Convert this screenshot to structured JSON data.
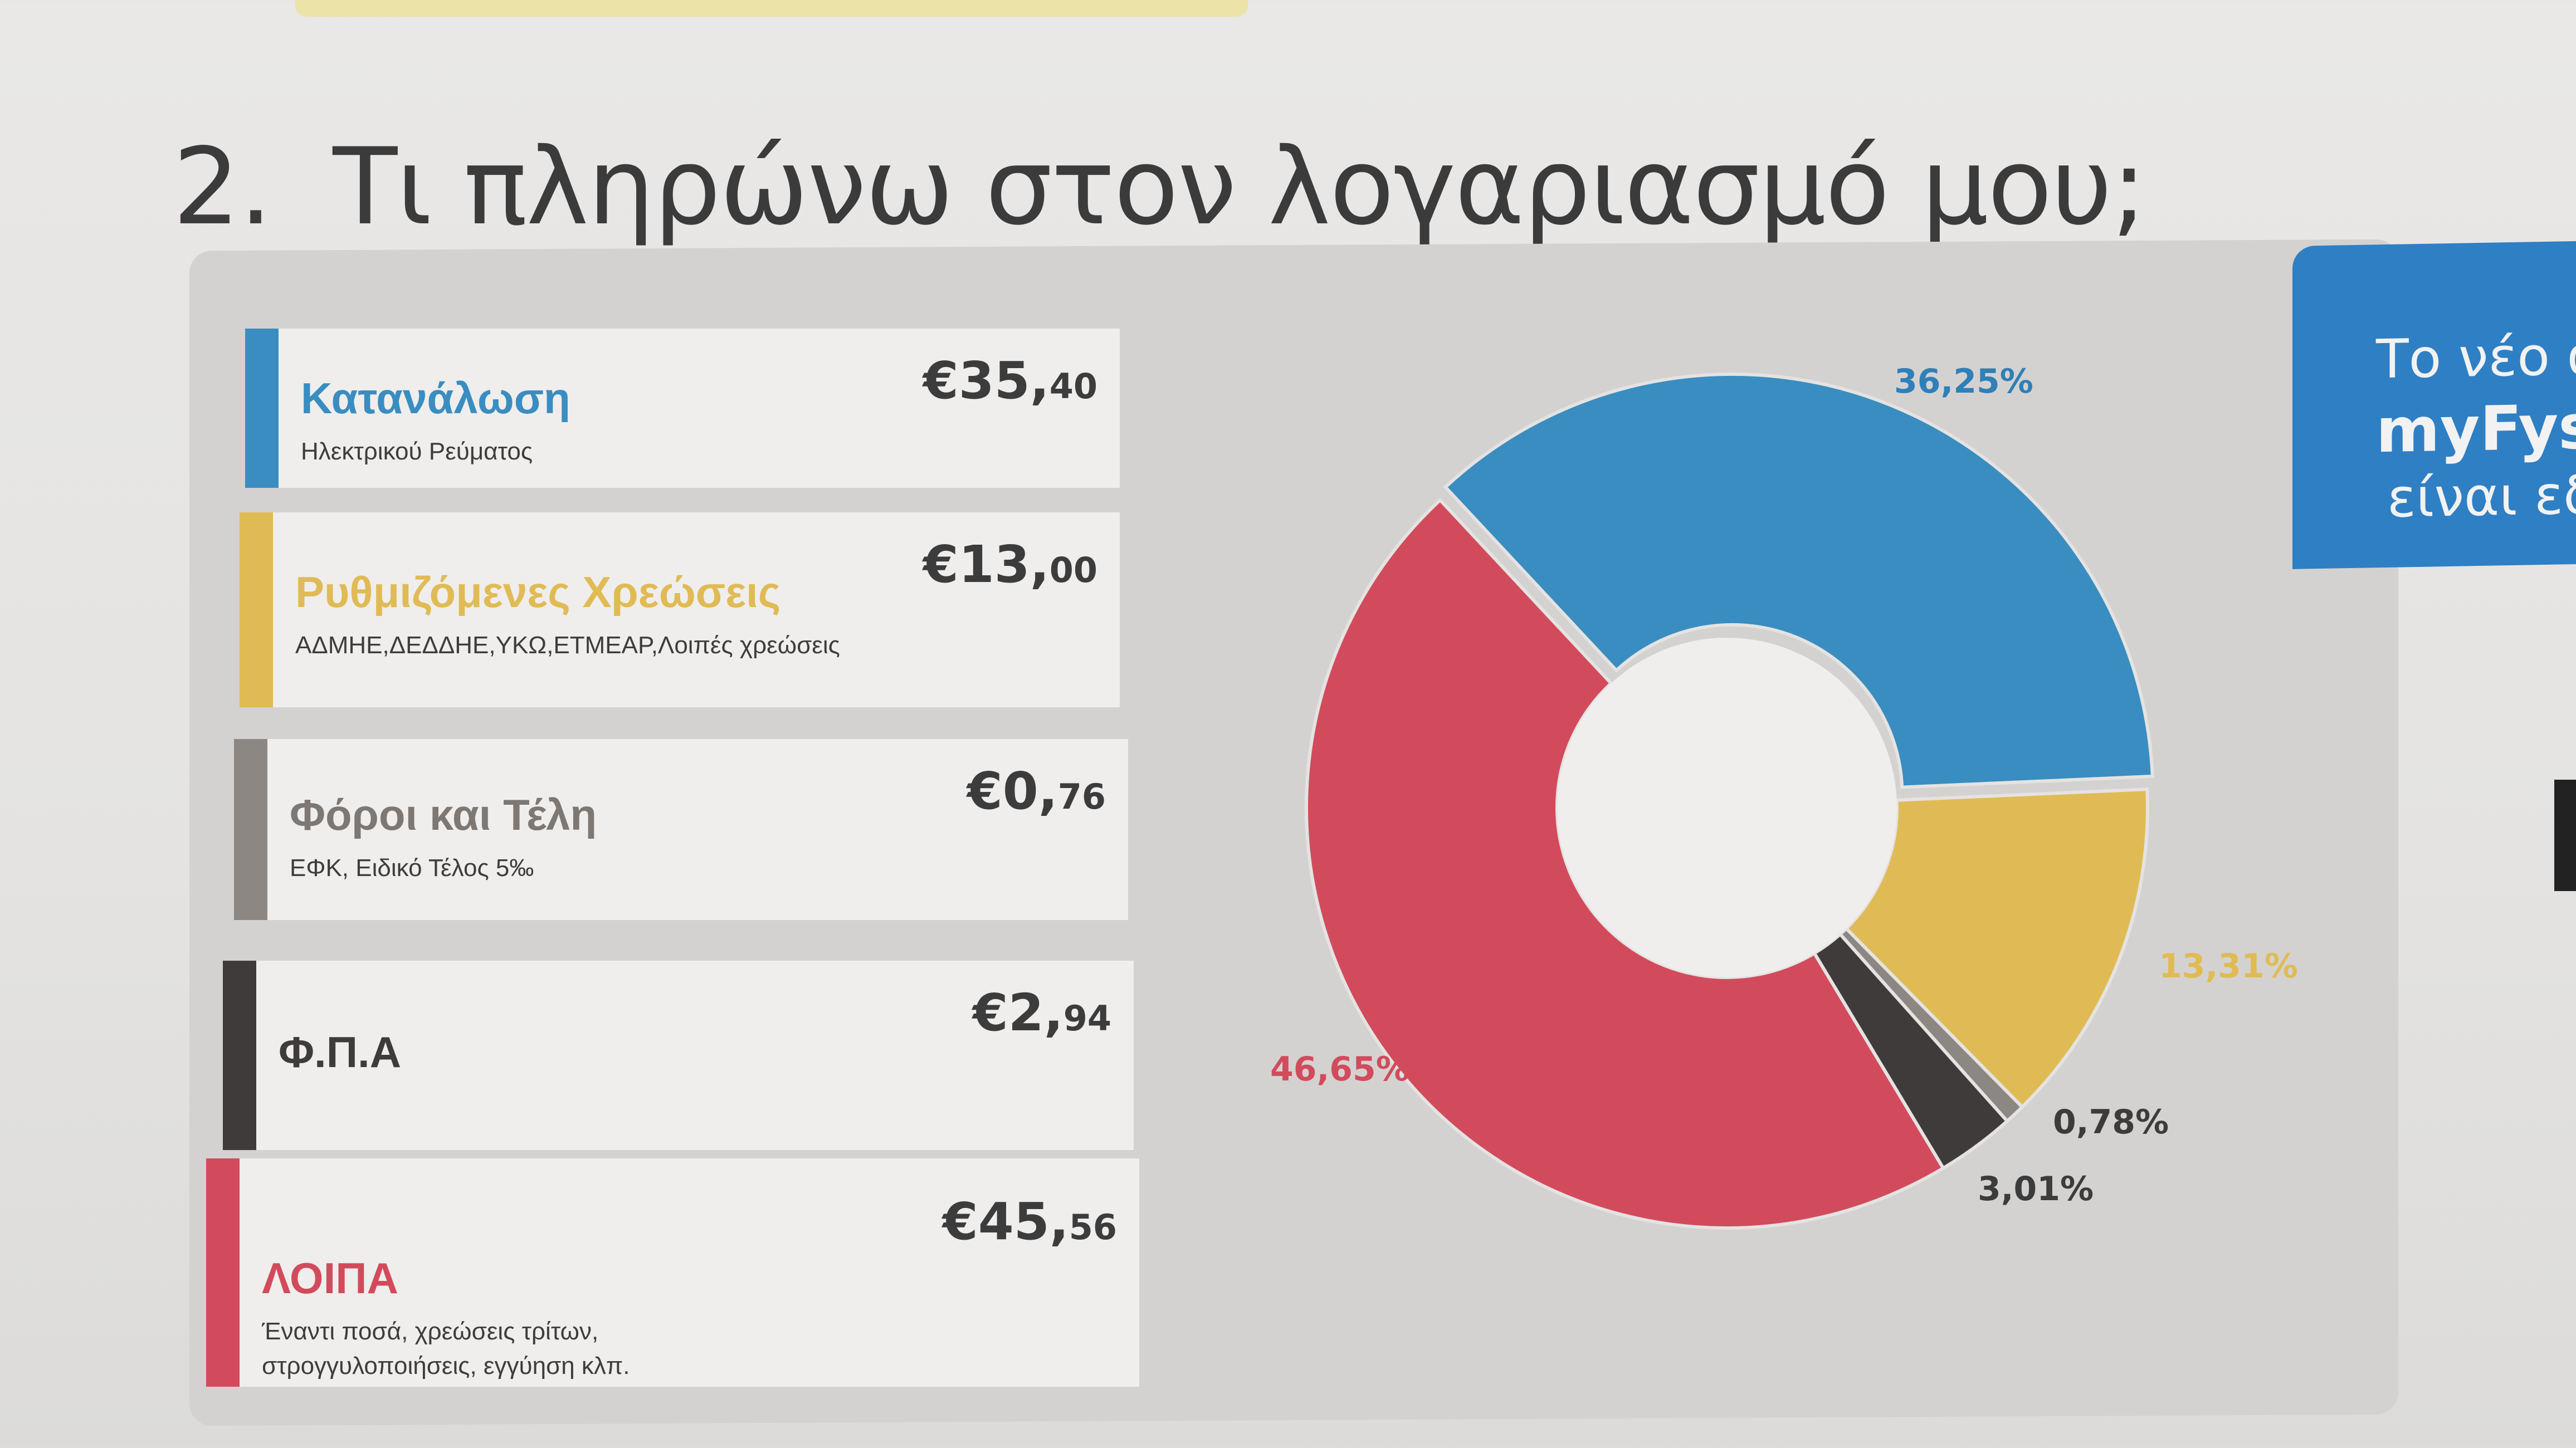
{
  "title": {
    "number": "2.",
    "text": "Τι πληρώνω στον λογαριασμό μου;"
  },
  "items": [
    {
      "label": "Κατανάλωση",
      "sub": [
        "Ηλεκτρικού Ρεύματος"
      ],
      "amount_main": "€35,",
      "amount_cents": "40",
      "color": "#3a8dc0"
    },
    {
      "label": "Ρυθμιζόμενες Χρεώσεις",
      "sub": [
        "ΑΔΜΗΕ,ΔΕΔΔΗΕ,ΥΚΩ,ΕΤΜΕΑΡ,Λοιπές χρεώσεις"
      ],
      "amount_main": "€13,",
      "amount_cents": "00",
      "color": "#e0bb55"
    },
    {
      "label": "Φόροι και Τέλη",
      "sub": [
        "ΕΦΚ, Ειδικό Τέλος 5‰"
      ],
      "amount_main": "€0,",
      "amount_cents": "76",
      "color": "#8c8783"
    },
    {
      "label": "Φ.Π.Α",
      "sub": [],
      "amount_main": "€2,",
      "amount_cents": "94",
      "color": "#3f3b3b"
    },
    {
      "label": "ΛΟΙΠΑ",
      "sub": [
        "Έναντι ποσά, χρεώσεις τρίτων,",
        "στρογγυλοποιήσεις, εγγύηση κλπ."
      ],
      "amount_main": "€45,",
      "amount_cents": "56",
      "color": "#d24b5c"
    }
  ],
  "chart_data": {
    "type": "pie",
    "donut": true,
    "values": [
      36.25,
      13.31,
      0.78,
      3.01,
      46.65
    ],
    "labels": [
      "36,25%",
      "13,31%",
      "0,78%",
      "3,01%",
      "46,65%"
    ],
    "colors": [
      "#3a8dc0",
      "#e0bb55",
      "#8c8783",
      "#3f3b3b",
      "#d24b5c"
    ],
    "label_colors": [
      "#2f7fb8",
      "#e0bb55",
      "#3c3c3c",
      "#3c3c3c",
      "#d24b5c"
    ]
  },
  "promo": {
    "line1": "Το νέο α",
    "line2": "myFysi",
    "line3": "είναι εδ"
  }
}
